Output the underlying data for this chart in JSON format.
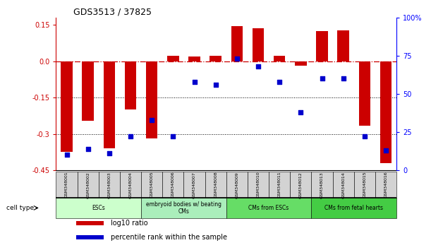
{
  "title": "GDS3513 / 37825",
  "samples": [
    "GSM348001",
    "GSM348002",
    "GSM348003",
    "GSM348004",
    "GSM348005",
    "GSM348006",
    "GSM348007",
    "GSM348008",
    "GSM348009",
    "GSM348010",
    "GSM348011",
    "GSM348012",
    "GSM348013",
    "GSM348014",
    "GSM348015",
    "GSM348016"
  ],
  "log10_ratio": [
    -0.375,
    -0.245,
    -0.36,
    -0.2,
    -0.32,
    0.023,
    0.018,
    0.023,
    0.145,
    0.135,
    0.022,
    -0.018,
    0.125,
    0.128,
    -0.265,
    -0.42
  ],
  "percentile_rank": [
    10,
    14,
    11,
    22,
    33,
    22,
    58,
    56,
    73,
    68,
    58,
    38,
    60,
    60,
    22,
    13
  ],
  "bar_color": "#cc0000",
  "dot_color": "#0000cc",
  "ylim_left": [
    -0.45,
    0.18
  ],
  "ylim_right": [
    0,
    100
  ],
  "yticks_left": [
    0.15,
    0.0,
    -0.15,
    -0.3,
    -0.45
  ],
  "yticks_right": [
    100,
    75,
    50,
    25,
    0
  ],
  "cell_type_groups": [
    {
      "label": "ESCs",
      "start": 0,
      "end": 4,
      "color": "#ccffcc"
    },
    {
      "label": "embryoid bodies w/ beating\nCMs",
      "start": 4,
      "end": 8,
      "color": "#aaeebb"
    },
    {
      "label": "CMs from ESCs",
      "start": 8,
      "end": 12,
      "color": "#66dd66"
    },
    {
      "label": "CMs from fetal hearts",
      "start": 12,
      "end": 16,
      "color": "#44cc44"
    }
  ],
  "legend_red_label": "log10 ratio",
  "legend_blue_label": "percentile rank within the sample",
  "cell_type_label": "cell type"
}
